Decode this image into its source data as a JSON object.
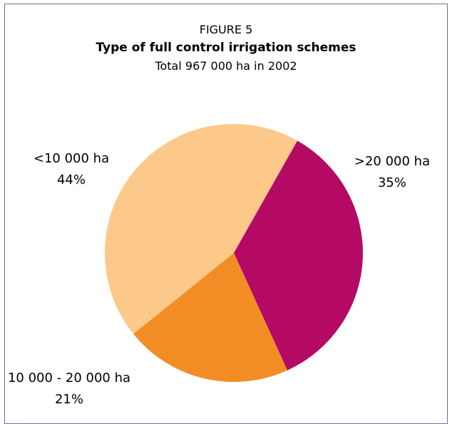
{
  "figure_label": "FIGURE 5",
  "chart_data": {
    "type": "pie",
    "title": "Type of full control irrigation schemes",
    "subtitle": "Total 967 000 ha in 2002",
    "slices": [
      {
        "label": "<10 000 ha",
        "value": 44,
        "value_label": "44%",
        "color": "#fcc98a"
      },
      {
        "label": ">20 000 ha",
        "value": 35,
        "value_label": "35%",
        "color": "#b50a63"
      },
      {
        "label": "10 000 - 20 000 ha",
        "value": 21,
        "value_label": "21%",
        "color": "#f28d25"
      }
    ]
  }
}
